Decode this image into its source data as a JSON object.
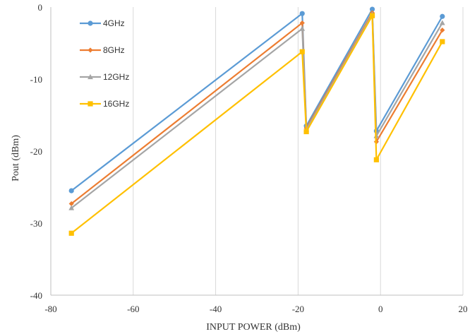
{
  "chart_data": {
    "type": "line",
    "title": "",
    "xlabel": "INPUT POWER (dBm)",
    "ylabel": "Pout (dBm)",
    "xlim": [
      -80,
      20
    ],
    "ylim": [
      -40,
      0
    ],
    "xticks": [
      -80,
      -60,
      -40,
      -20,
      0,
      20
    ],
    "yticks": [
      0,
      -10,
      -20,
      -30,
      -40
    ],
    "grid": {
      "vertical": true,
      "horizontal": false
    },
    "legend_position": "top-left",
    "series": [
      {
        "name": "4GHz",
        "color": "#5B9BD5",
        "marker": "circle",
        "points": [
          [
            -75,
            -25.5
          ],
          [
            -19,
            -0.9
          ],
          [
            -18,
            -16.5
          ],
          [
            -2,
            -0.3
          ],
          [
            -1,
            -17.2
          ],
          [
            15,
            -1.3
          ]
        ]
      },
      {
        "name": "8GHz",
        "color": "#ED7D31",
        "marker": "diamond",
        "points": [
          [
            -75,
            -27.3
          ],
          [
            -19,
            -2.2
          ],
          [
            -18,
            -16.8
          ],
          [
            -2,
            -0.8
          ],
          [
            -1,
            -18.7
          ],
          [
            15,
            -3.2
          ]
        ]
      },
      {
        "name": "12GHz",
        "color": "#A5A5A5",
        "marker": "triangle",
        "points": [
          [
            -75,
            -27.9
          ],
          [
            -19,
            -3.0
          ],
          [
            -18,
            -17.0
          ],
          [
            -2,
            -1.0
          ],
          [
            -1,
            -17.9
          ],
          [
            15,
            -2.2
          ]
        ]
      },
      {
        "name": "16GHz",
        "color": "#FFC000",
        "marker": "square",
        "points": [
          [
            -75,
            -31.4
          ],
          [
            -19,
            -6.2
          ],
          [
            -18,
            -17.3
          ],
          [
            -2,
            -1.2
          ],
          [
            -1,
            -21.2
          ],
          [
            15,
            -4.8
          ]
        ]
      }
    ]
  }
}
